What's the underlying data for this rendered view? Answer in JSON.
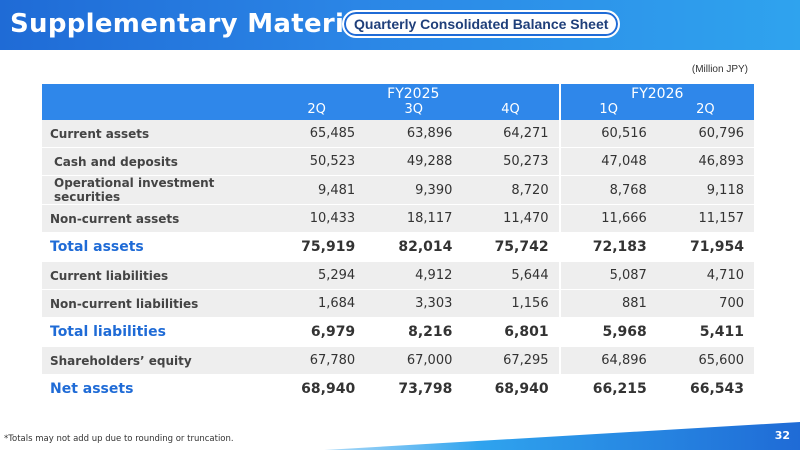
{
  "header": {
    "title": "Supplementary Material",
    "subtitle": "Quarterly Consolidated Balance Sheet"
  },
  "unit": "(Million JPY)",
  "table": {
    "years": [
      {
        "label": "FY2025",
        "span": 3
      },
      {
        "label": "FY2026",
        "span": 2
      }
    ],
    "quarters": [
      "2Q",
      "3Q",
      "4Q",
      "1Q",
      "2Q"
    ],
    "rows": [
      {
        "label": "Current assets",
        "style": "gray",
        "indent": false,
        "values": [
          "65,485",
          "63,896",
          "64,271",
          "60,516",
          "60,796"
        ]
      },
      {
        "label": "Cash and deposits",
        "style": "gray",
        "indent": true,
        "values": [
          "50,523",
          "49,288",
          "50,273",
          "47,048",
          "46,893"
        ]
      },
      {
        "label": "Operational investment securities",
        "style": "gray",
        "indent": true,
        "values": [
          "9,481",
          "9,390",
          "8,720",
          "8,768",
          "9,118"
        ]
      },
      {
        "label": "Non-current assets",
        "style": "gray",
        "indent": false,
        "values": [
          "10,433",
          "18,117",
          "11,470",
          "11,666",
          "11,157"
        ]
      },
      {
        "label": "Total assets",
        "style": "total",
        "indent": false,
        "values": [
          "75,919",
          "82,014",
          "75,742",
          "72,183",
          "71,954"
        ]
      },
      {
        "label": "Current liabilities",
        "style": "gray",
        "indent": false,
        "values": [
          "5,294",
          "4,912",
          "5,644",
          "5,087",
          "4,710"
        ]
      },
      {
        "label": "Non-current liabilities",
        "style": "gray",
        "indent": false,
        "values": [
          "1,684",
          "3,303",
          "1,156",
          "881",
          "700"
        ]
      },
      {
        "label": "Total liabilities",
        "style": "total",
        "indent": false,
        "values": [
          "6,979",
          "8,216",
          "6,801",
          "5,968",
          "5,411"
        ]
      },
      {
        "label": "Shareholders’ equity",
        "style": "gray",
        "indent": false,
        "values": [
          "67,780",
          "67,000",
          "67,295",
          "64,896",
          "65,600"
        ]
      },
      {
        "label": "Net assets",
        "style": "total",
        "indent": false,
        "values": [
          "68,940",
          "73,798",
          "68,940",
          "66,215",
          "66,543"
        ]
      }
    ]
  },
  "footnote": "*Totals may not add up due to rounding or truncation.",
  "page_number": "32",
  "colors": {
    "accent": "#2f87ea",
    "total_label": "#1f6bd6",
    "row_gray": "#eeeeee"
  }
}
